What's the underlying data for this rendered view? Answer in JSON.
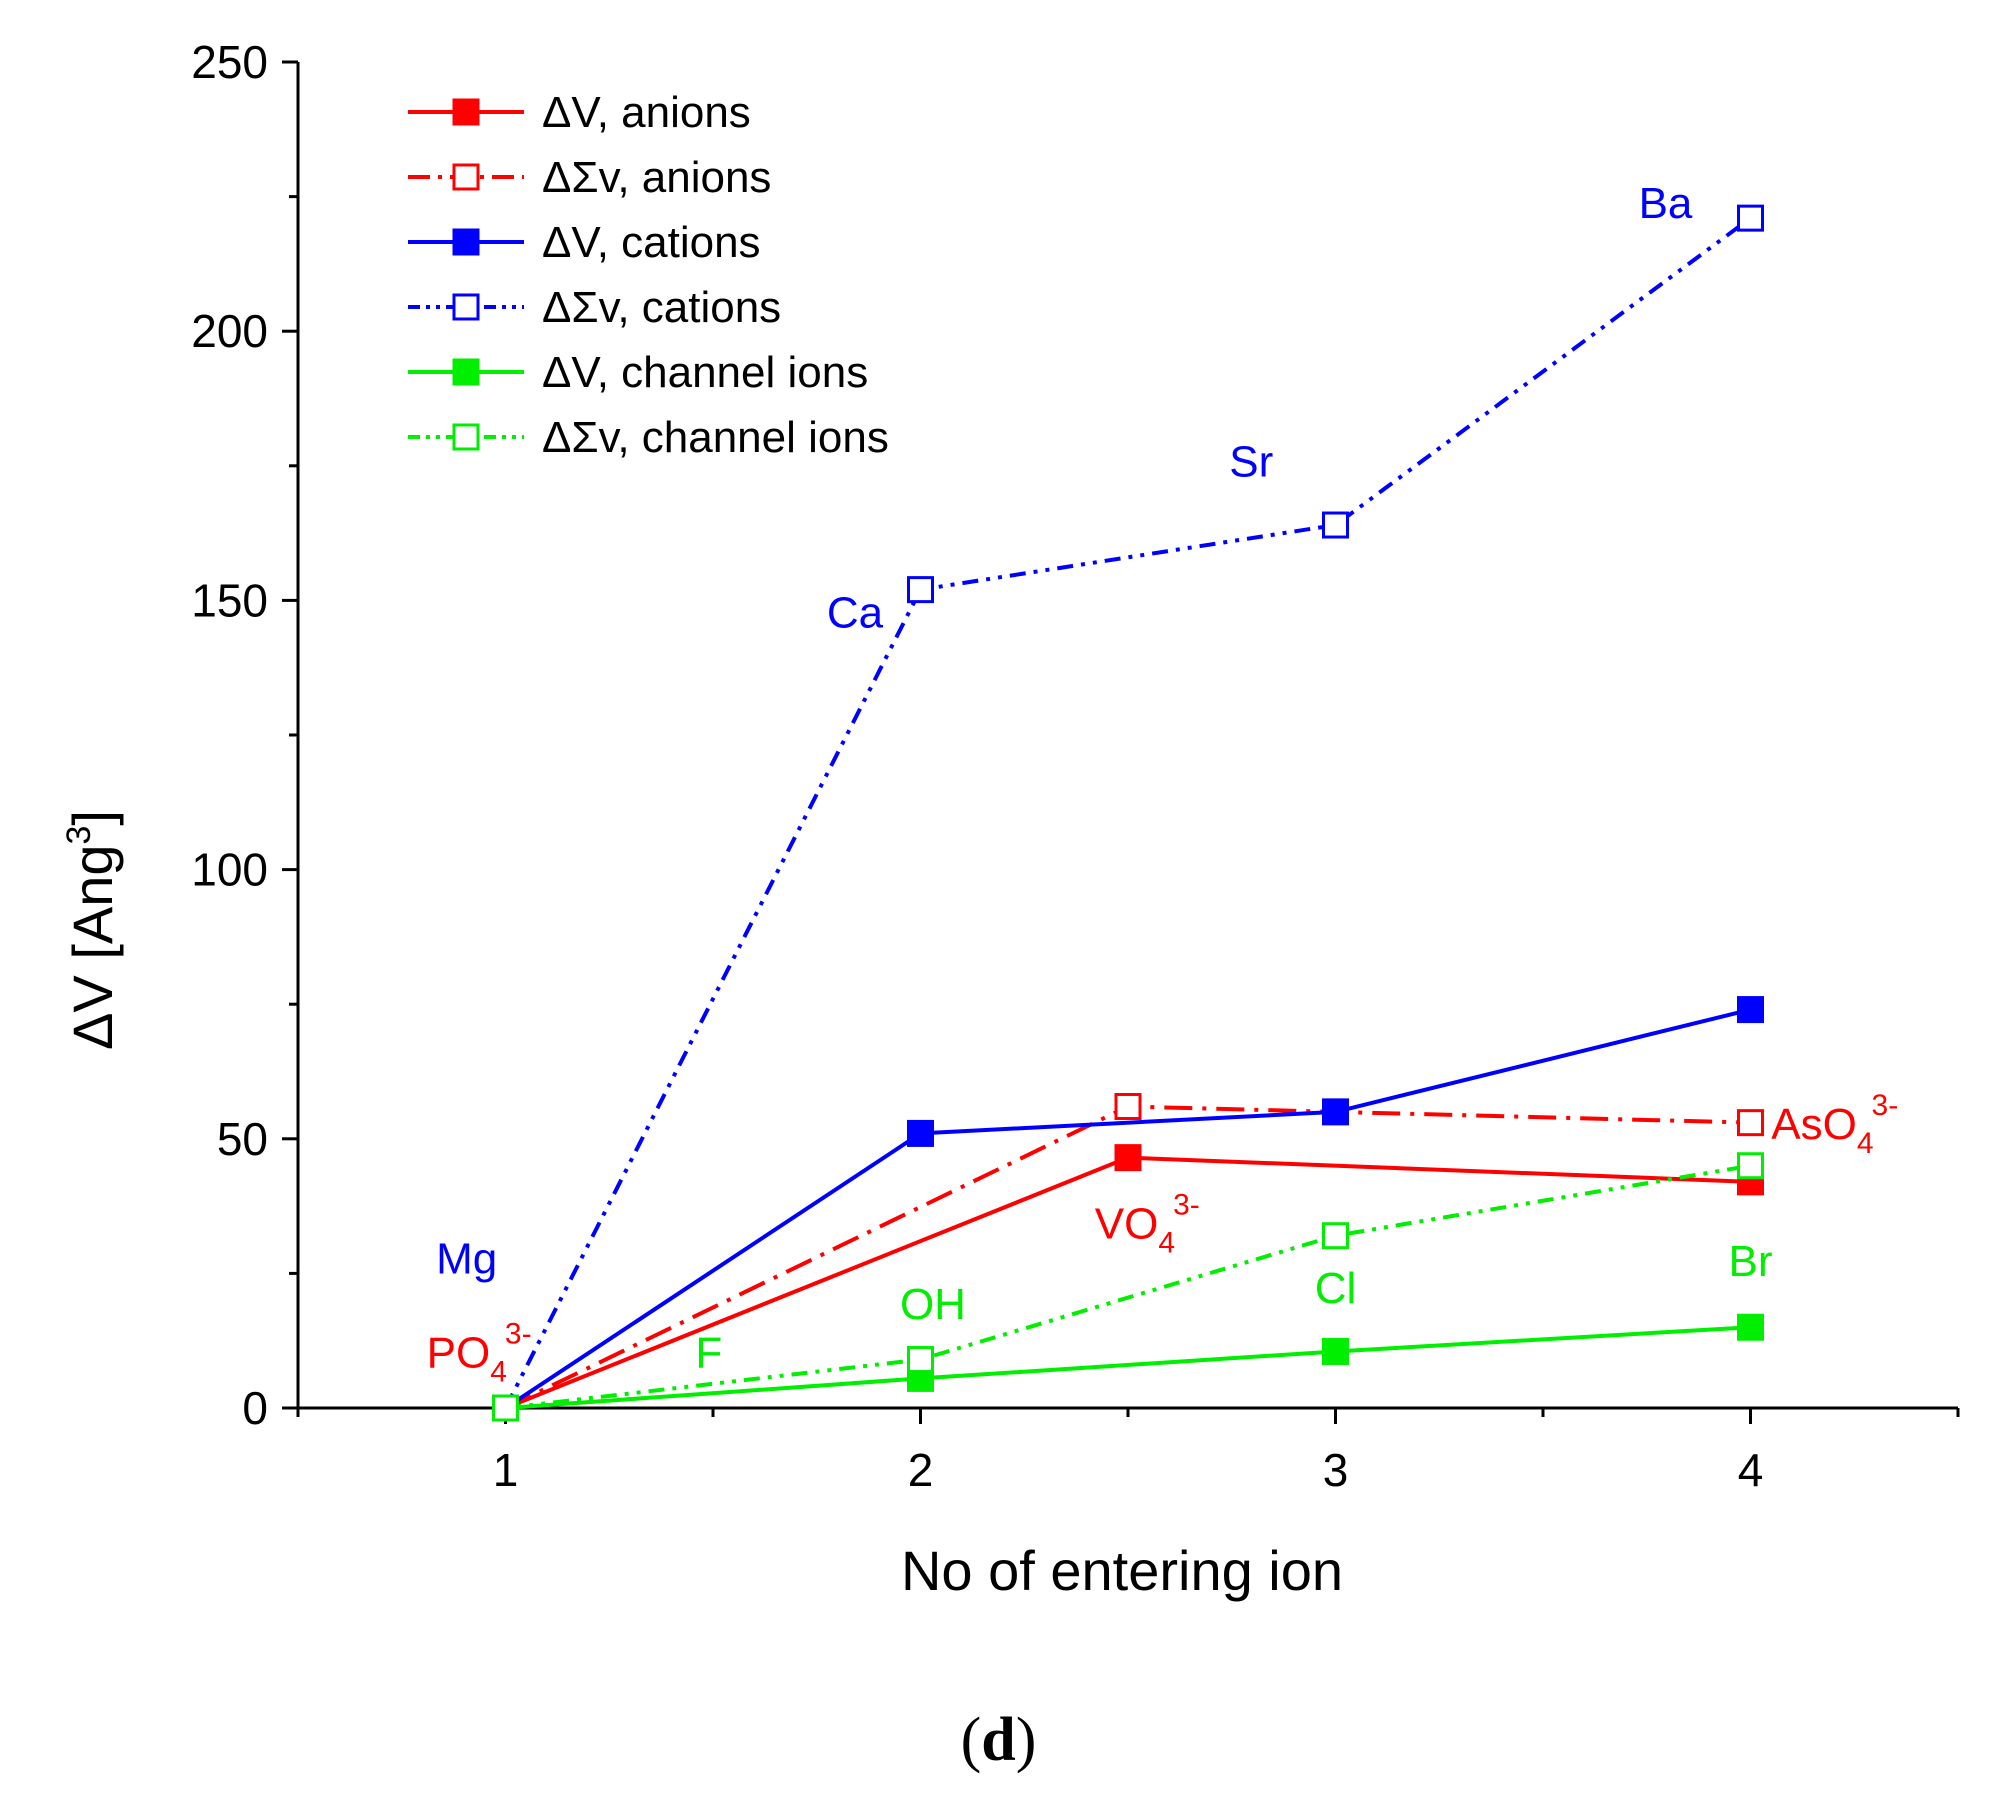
{
  "chart_data": {
    "type": "line",
    "title": "",
    "xlabel": "No of entering ion",
    "ylabel_main": "ΔV [Ang",
    "ylabel_sup": "3",
    "ylabel_tail": "]",
    "xlim": [
      0.5,
      4.5
    ],
    "ylim": [
      0,
      250
    ],
    "x_ticks": [
      1,
      2,
      3,
      4
    ],
    "x_tick_labels": [
      "1",
      "2",
      "3",
      "4"
    ],
    "y_ticks": [
      0,
      50,
      100,
      150,
      200,
      250
    ],
    "y_tick_labels": [
      "0",
      "50",
      "100",
      "150",
      "200",
      "250"
    ],
    "legend_position": "top-left",
    "grid": false,
    "series": [
      {
        "name": "ΔV, anions",
        "color": "#ff0000",
        "marker": "filled-square",
        "dash": "solid",
        "x": [
          1,
          2.5,
          4
        ],
        "y": [
          0,
          46.5,
          42
        ]
      },
      {
        "name": "ΔΣv, anions",
        "color": "#ff0000",
        "marker": "open-square",
        "dash": "dash-dot",
        "x": [
          1,
          2.5,
          4
        ],
        "y": [
          0,
          56,
          53
        ]
      },
      {
        "name": "ΔV, cations",
        "color": "#0000ff",
        "marker": "filled-square",
        "dash": "solid",
        "x": [
          1,
          2,
          3,
          4
        ],
        "y": [
          0,
          51,
          55,
          74
        ]
      },
      {
        "name": "ΔΣv, cations",
        "color": "#0000ff",
        "marker": "open-square",
        "dash": "dash-dot-dot",
        "x": [
          1,
          2,
          3,
          4
        ],
        "y": [
          0,
          152,
          164,
          221
        ]
      },
      {
        "name": "ΔV, channel ions",
        "color": "#00ee00",
        "marker": "filled-square",
        "dash": "solid",
        "x": [
          1,
          2,
          3,
          4
        ],
        "y": [
          0,
          5.5,
          10.5,
          15
        ]
      },
      {
        "name": "ΔΣv, channel ions",
        "color": "#00ee00",
        "marker": "open-square",
        "dash": "dash-dot-dot",
        "x": [
          1,
          2,
          3,
          4
        ],
        "y": [
          0,
          9,
          32,
          45
        ]
      }
    ],
    "annotations": [
      {
        "text": "Mg",
        "color": "#0000ff",
        "x": 0.98,
        "y": 25,
        "align": "end"
      },
      {
        "text": "Ca",
        "color": "#0000ff",
        "x": 1.91,
        "y": 145,
        "align": "end"
      },
      {
        "text": "Sr",
        "color": "#0000ff",
        "x": 2.85,
        "y": 173,
        "align": "end"
      },
      {
        "text": "Ba",
        "color": "#0000ff",
        "x": 3.86,
        "y": 221,
        "align": "end"
      },
      {
        "text": "F",
        "color": "#00ee00",
        "x": 1.49,
        "y": 7.5,
        "align": "middle"
      },
      {
        "text": "OH",
        "color": "#00ee00",
        "x": 2.03,
        "y": 16.5,
        "align": "middle"
      },
      {
        "text": "Cl",
        "color": "#00ee00",
        "x": 3.0,
        "y": 19.5,
        "align": "middle"
      },
      {
        "text": "Br",
        "color": "#00ee00",
        "x": 4.0,
        "y": 24.5,
        "align": "middle"
      },
      {
        "text": "PO",
        "sub": "4",
        "sup": "3-",
        "color": "#ff0000",
        "x": 0.81,
        "y": 7.5,
        "align": "start"
      },
      {
        "text": "VO",
        "sub": "4",
        "sup": "3-",
        "color": "#ff0000",
        "x": 2.42,
        "y": 31.5,
        "align": "start"
      },
      {
        "text": "AsO",
        "sub": "4",
        "sup": "3-",
        "color": "#ff0000",
        "x": 4.05,
        "y": 50,
        "align": "start"
      }
    ]
  },
  "panel_label": "(d)",
  "panel_label_open": "(",
  "panel_label_letter": "d",
  "panel_label_close": ")"
}
